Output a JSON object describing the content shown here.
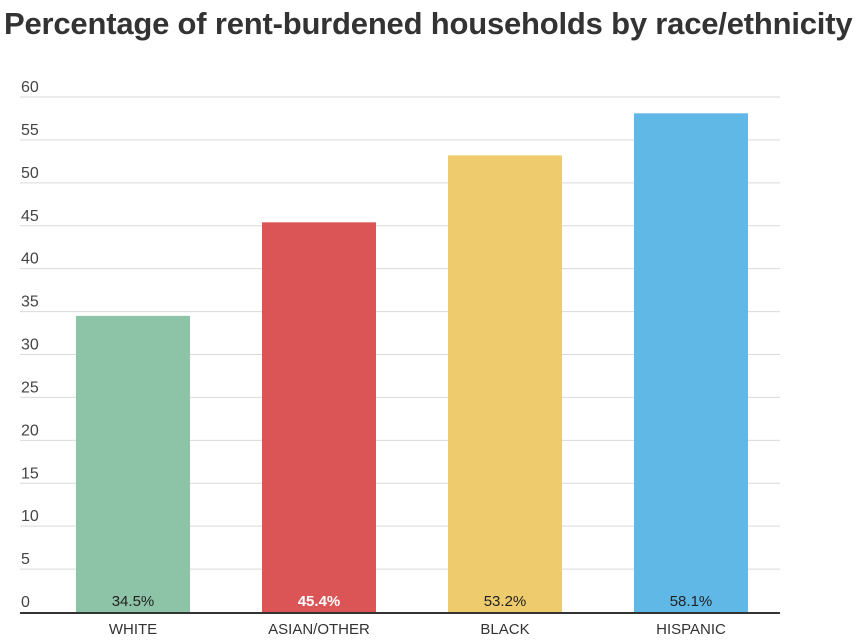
{
  "chart_data": {
    "type": "bar",
    "title": "Percentage of rent-burdened households by race/ethnicity",
    "xlabel": "",
    "ylabel": "",
    "categories": [
      "WHITE",
      "ASIAN/OTHER",
      "BLACK",
      "HISPANIC"
    ],
    "values": [
      34.5,
      45.4,
      53.2,
      58.1
    ],
    "value_labels": [
      "34.5%",
      "45.4%",
      "53.2%",
      "58.1%"
    ],
    "colors": [
      "#8dc3a6",
      "#dc5556",
      "#eecb6c",
      "#60b8e7"
    ],
    "value_label_colors": [
      "#222222",
      "#ffffff",
      "#222222",
      "#222222"
    ],
    "ylim": [
      0,
      60
    ],
    "yticks": [
      0,
      5,
      10,
      15,
      20,
      25,
      30,
      35,
      40,
      45,
      50,
      55,
      60
    ],
    "grid": true,
    "legend": "none"
  }
}
